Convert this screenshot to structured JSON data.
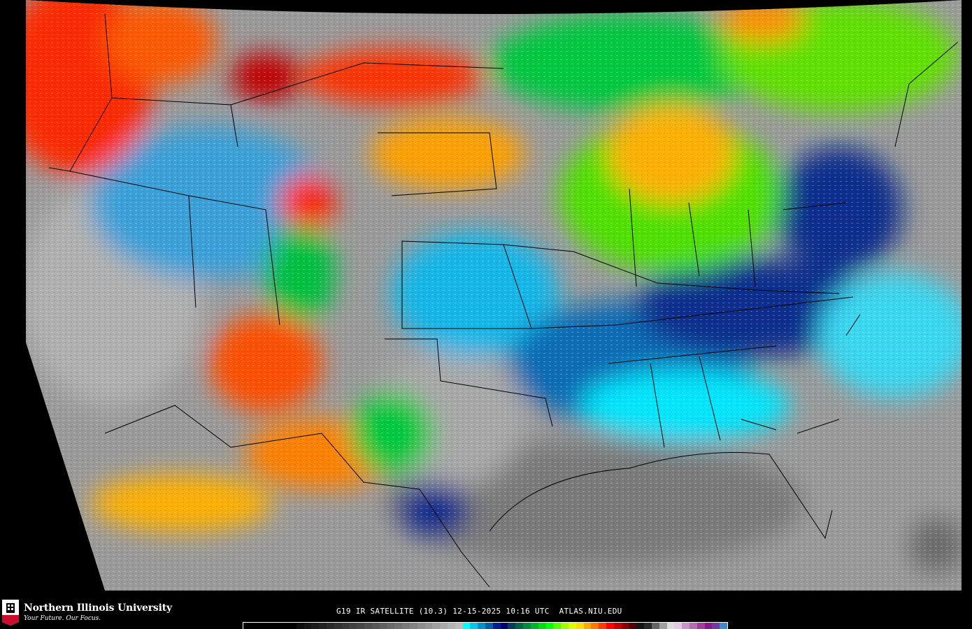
{
  "logo": {
    "name": "Northern Illinois University",
    "tagline": "Your Future. Our Focus.",
    "badge": "NIU"
  },
  "caption": {
    "satellite": "G19",
    "product": "IR SATELLITE",
    "channel": "(10.3)",
    "date": "12-15-2025",
    "time": "10:16 UTC",
    "source": "ATLAS.NIU.EDU"
  },
  "colorbar": {
    "colors": [
      "#000000",
      "#000000",
      "#000000",
      "#000000",
      "#000000",
      "#000000",
      "#000000",
      "#0d0d0d",
      "#151515",
      "#1c1c1c",
      "#232323",
      "#2a2a2a",
      "#313131",
      "#383838",
      "#404040",
      "#474747",
      "#4f4f4f",
      "#575757",
      "#606060",
      "#686868",
      "#717171",
      "#7a7a7a",
      "#838383",
      "#8c8c8c",
      "#959595",
      "#9f9f9f",
      "#a9a9a9",
      "#b3b3b3",
      "#bdbdbd",
      "#00ffff",
      "#00c8e6",
      "#0090c8",
      "#0060a0",
      "#001e8c",
      "#00006e",
      "#003c5a",
      "#006446",
      "#008c3c",
      "#00b428",
      "#00dc14",
      "#00ff00",
      "#50ff00",
      "#a0ff00",
      "#dcff00",
      "#ffdc00",
      "#ffaa00",
      "#ff7800",
      "#ff3c00",
      "#ff0000",
      "#c80000",
      "#8c0000",
      "#500000",
      "#141414",
      "#282828",
      "#646464",
      "#a0a0a0",
      "#dcdcdc",
      "#e6c8e6",
      "#c896c8",
      "#b46eb4",
      "#a03ca0",
      "#8c148c",
      "#6e3ca0",
      "#3c8cc8"
    ]
  },
  "map": {
    "description_colors": {
      "cold_cloud_tops": "#ff0000",
      "mid_cloud": "#00ff00",
      "low_cloud": "#00ffff",
      "clear": "#a0a0a0"
    }
  }
}
